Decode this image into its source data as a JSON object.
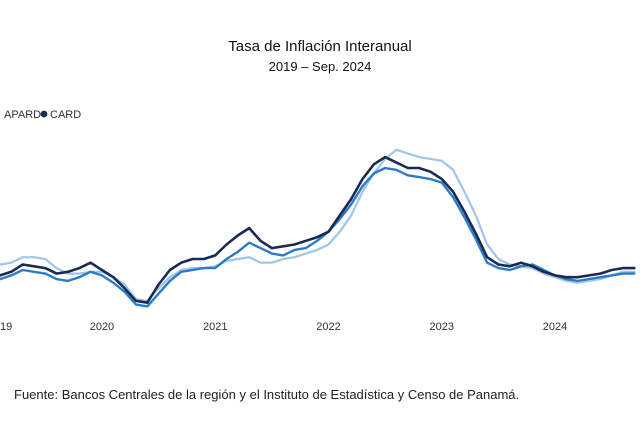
{
  "header": {
    "title": "Tasa de Inflación Interanual",
    "subtitle": "2019 – Sep. 2024"
  },
  "source": {
    "label": "Fuente",
    "text": ": Bancos Centrales de la región y el Instituto de Estadística y Censo de Panamá."
  },
  "chart_data": {
    "type": "line",
    "title": "Tasa de Inflación Interanual",
    "subtitle": "2019 – Sep. 2024",
    "xlabel": "",
    "ylabel": "",
    "x_ticks": [
      "19",
      "2020",
      "2021",
      "2022",
      "2023",
      "2024"
    ],
    "x_tick_positions": [
      2019.1,
      2020,
      2021,
      2022,
      2023,
      2024
    ],
    "xlim": [
      2019.1,
      2024.75
    ],
    "ylim": [
      0,
      10
    ],
    "grid": false,
    "legend": {
      "position": "top-left",
      "entries": [
        "APARD",
        "CARD"
      ]
    },
    "series": [
      {
        "name": "",
        "color": "#9ec5ea",
        "x": [
          2019.1,
          2019.2,
          2019.3,
          2019.4,
          2019.5,
          2019.6,
          2019.7,
          2019.8,
          2019.9,
          2020.0,
          2020.1,
          2020.2,
          2020.3,
          2020.4,
          2020.5,
          2020.6,
          2020.7,
          2020.8,
          2020.9,
          2021.0,
          2021.1,
          2021.2,
          2021.3,
          2021.4,
          2021.5,
          2021.6,
          2021.7,
          2021.8,
          2021.9,
          2022.0,
          2022.1,
          2022.2,
          2022.3,
          2022.4,
          2022.5,
          2022.6,
          2022.7,
          2022.8,
          2022.9,
          2023.0,
          2023.1,
          2023.2,
          2023.3,
          2023.4,
          2023.5,
          2023.6,
          2023.7,
          2023.8,
          2023.9,
          2024.0,
          2024.1,
          2024.2,
          2024.3,
          2024.4,
          2024.5,
          2024.6,
          2024.7
        ],
        "values": [
          2.5,
          2.6,
          2.9,
          2.9,
          2.8,
          2.3,
          2.0,
          2.0,
          2.1,
          2.1,
          1.8,
          1.4,
          0.6,
          0.5,
          1.2,
          1.8,
          2.2,
          2.3,
          2.3,
          2.4,
          2.7,
          2.8,
          2.9,
          2.6,
          2.6,
          2.8,
          2.9,
          3.1,
          3.3,
          3.6,
          4.3,
          5.2,
          6.5,
          7.5,
          8.3,
          8.8,
          8.6,
          8.4,
          8.3,
          8.2,
          7.7,
          6.5,
          5.2,
          3.6,
          2.8,
          2.5,
          2.4,
          2.3,
          2.0,
          1.8,
          1.6,
          1.5,
          1.6,
          1.7,
          1.9,
          2.1,
          2.1
        ]
      },
      {
        "name": "",
        "color": "#2b7cc4",
        "x": [
          2019.1,
          2019.2,
          2019.3,
          2019.4,
          2019.5,
          2019.6,
          2019.7,
          2019.8,
          2019.9,
          2020.0,
          2020.1,
          2020.2,
          2020.3,
          2020.4,
          2020.5,
          2020.6,
          2020.7,
          2020.8,
          2020.9,
          2021.0,
          2021.1,
          2021.2,
          2021.3,
          2021.4,
          2021.5,
          2021.6,
          2021.7,
          2021.8,
          2021.9,
          2022.0,
          2022.1,
          2022.2,
          2022.3,
          2022.4,
          2022.5,
          2022.6,
          2022.7,
          2022.8,
          2022.9,
          2023.0,
          2023.1,
          2023.2,
          2023.3,
          2023.4,
          2023.5,
          2023.6,
          2023.7,
          2023.8,
          2023.9,
          2024.0,
          2024.1,
          2024.2,
          2024.3,
          2024.4,
          2024.5,
          2024.6,
          2024.7
        ],
        "values": [
          1.7,
          1.9,
          2.2,
          2.1,
          2.0,
          1.7,
          1.6,
          1.8,
          2.1,
          1.9,
          1.5,
          1.0,
          0.3,
          0.2,
          0.9,
          1.6,
          2.1,
          2.2,
          2.3,
          2.3,
          2.8,
          3.2,
          3.7,
          3.4,
          3.1,
          3.0,
          3.3,
          3.4,
          3.8,
          4.3,
          5.0,
          5.8,
          6.8,
          7.5,
          7.8,
          7.7,
          7.4,
          7.3,
          7.2,
          7.0,
          6.2,
          5.1,
          3.9,
          2.6,
          2.3,
          2.2,
          2.4,
          2.5,
          2.2,
          1.9,
          1.7,
          1.6,
          1.7,
          1.8,
          1.9,
          2.0,
          2.0
        ]
      },
      {
        "name": "",
        "color": "#1a2a52",
        "x": [
          2019.1,
          2019.2,
          2019.3,
          2019.4,
          2019.5,
          2019.6,
          2019.7,
          2019.8,
          2019.9,
          2020.0,
          2020.1,
          2020.2,
          2020.3,
          2020.4,
          2020.5,
          2020.6,
          2020.7,
          2020.8,
          2020.9,
          2021.0,
          2021.1,
          2021.2,
          2021.3,
          2021.4,
          2021.5,
          2021.6,
          2021.7,
          2021.8,
          2021.9,
          2022.0,
          2022.1,
          2022.2,
          2022.3,
          2022.4,
          2022.5,
          2022.6,
          2022.7,
          2022.8,
          2022.9,
          2023.0,
          2023.1,
          2023.2,
          2023.3,
          2023.4,
          2023.5,
          2023.6,
          2023.7,
          2023.8,
          2023.9,
          2024.0,
          2024.1,
          2024.2,
          2024.3,
          2024.4,
          2024.5,
          2024.6,
          2024.7
        ],
        "values": [
          1.9,
          2.1,
          2.5,
          2.4,
          2.3,
          2.0,
          2.1,
          2.3,
          2.6,
          2.2,
          1.8,
          1.2,
          0.5,
          0.4,
          1.4,
          2.2,
          2.6,
          2.8,
          2.8,
          3.0,
          3.6,
          4.1,
          4.5,
          3.8,
          3.4,
          3.5,
          3.6,
          3.8,
          4.0,
          4.3,
          5.2,
          6.1,
          7.2,
          8.0,
          8.4,
          8.1,
          7.8,
          7.8,
          7.6,
          7.2,
          6.5,
          5.4,
          4.2,
          2.9,
          2.5,
          2.4,
          2.6,
          2.4,
          2.1,
          1.9,
          1.8,
          1.8,
          1.9,
          2.0,
          2.2,
          2.3,
          2.3
        ]
      }
    ]
  }
}
